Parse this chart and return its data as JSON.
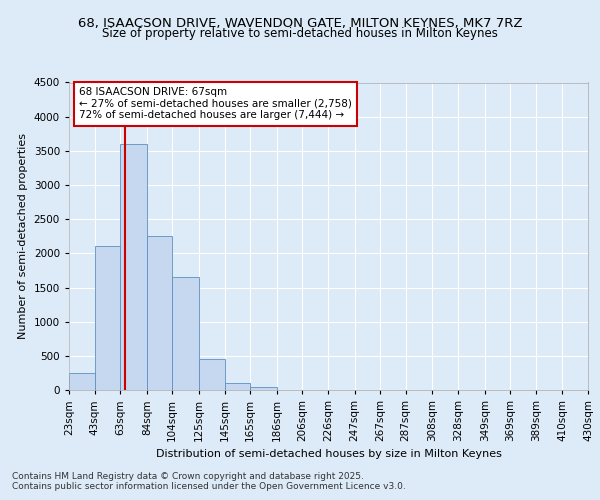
{
  "title1": "68, ISAACSON DRIVE, WAVENDON GATE, MILTON KEYNES, MK7 7RZ",
  "title2": "Size of property relative to semi-detached houses in Milton Keynes",
  "xlabel": "Distribution of semi-detached houses by size in Milton Keynes",
  "ylabel": "Number of semi-detached properties",
  "footer1": "Contains HM Land Registry data © Crown copyright and database right 2025.",
  "footer2": "Contains public sector information licensed under the Open Government Licence v3.0.",
  "annotation_title": "68 ISAACSON DRIVE: 67sqm",
  "annotation_line1": "← 27% of semi-detached houses are smaller (2,758)",
  "annotation_line2": "72% of semi-detached houses are larger (7,444) →",
  "subject_value": 67,
  "bin_edges": [
    23,
    43,
    63,
    84,
    104,
    125,
    145,
    165,
    186,
    206,
    226,
    247,
    267,
    287,
    308,
    328,
    349,
    369,
    389,
    410,
    430
  ],
  "bin_labels": [
    "23sqm",
    "43sqm",
    "63sqm",
    "84sqm",
    "104sqm",
    "125sqm",
    "145sqm",
    "165sqm",
    "186sqm",
    "206sqm",
    "226sqm",
    "247sqm",
    "267sqm",
    "287sqm",
    "308sqm",
    "328sqm",
    "349sqm",
    "369sqm",
    "389sqm",
    "410sqm",
    "430sqm"
  ],
  "bar_heights": [
    250,
    2100,
    3600,
    2250,
    1650,
    450,
    100,
    50,
    0,
    0,
    0,
    0,
    0,
    0,
    0,
    0,
    0,
    0,
    0,
    0
  ],
  "bar_color": "#c5d8f0",
  "bar_edgecolor": "#5b90c0",
  "vline_color": "#cc0000",
  "ylim": [
    0,
    4500
  ],
  "yticks": [
    0,
    500,
    1000,
    1500,
    2000,
    2500,
    3000,
    3500,
    4000,
    4500
  ],
  "bg_color": "#ddeaf7",
  "axes_bg_color": "#ddeaf7",
  "annotation_box_color": "#ffffff",
  "annotation_border_color": "#cc0000",
  "title_fontsize": 9.5,
  "subtitle_fontsize": 8.5,
  "label_fontsize": 8,
  "tick_fontsize": 7.5,
  "footer_fontsize": 6.5,
  "annotation_fontsize": 7.5
}
